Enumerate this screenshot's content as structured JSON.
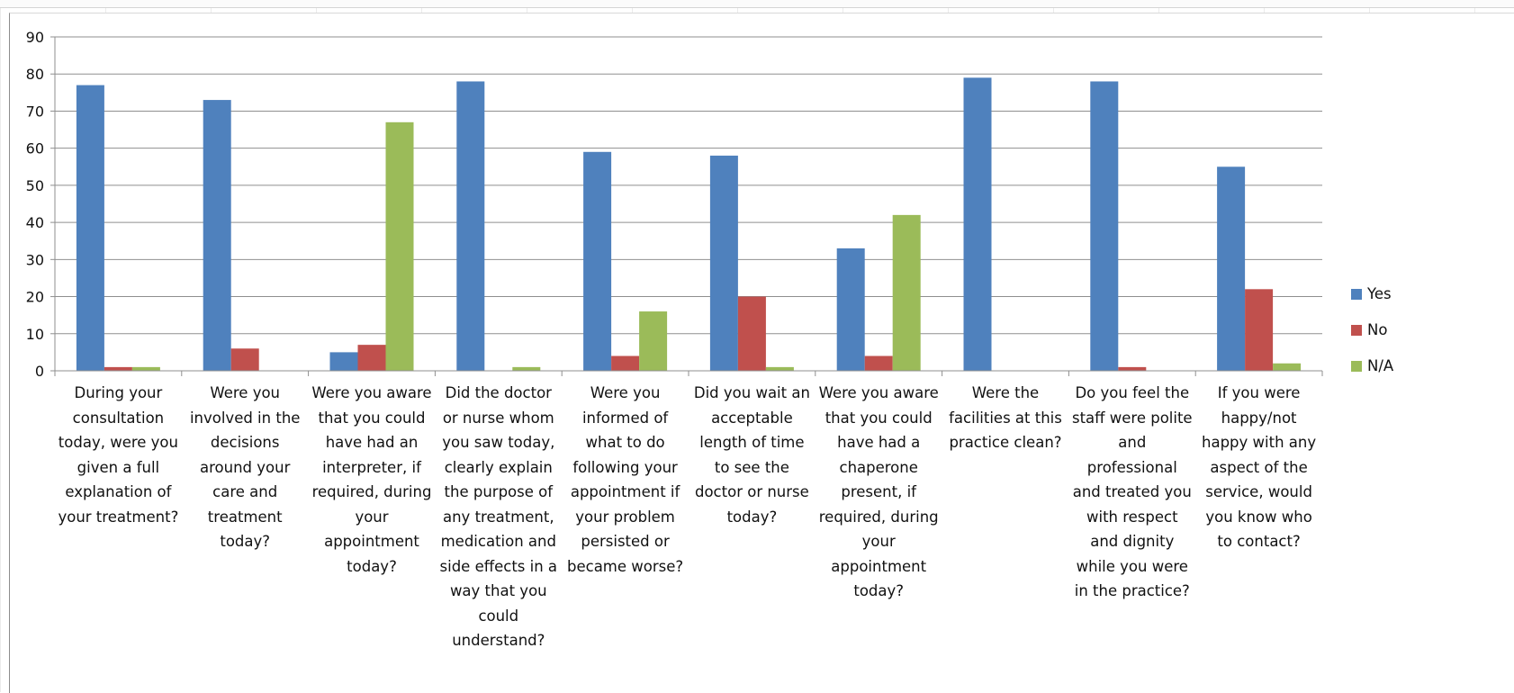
{
  "chart_data": {
    "type": "bar",
    "title": "",
    "xlabel": "",
    "ylabel": "",
    "ylim": [
      0,
      90
    ],
    "yticks": [
      0,
      10,
      20,
      30,
      40,
      50,
      60,
      70,
      80,
      90
    ],
    "grid": true,
    "legend_position": "right",
    "categories": [
      "During your consultation today, were you given a full explanation of your treatment?",
      "Were you involved in the decisions around your care and treatment today?",
      "Were you aware that you could have had an interpreter, if required, during your appointment today?",
      "Did the doctor or nurse whom you saw today, clearly explain the purpose of any treatment, medication and side effects in a way that you could understand?",
      "Were you informed of what to do following your appointment if your problem persisted or became worse?",
      "Did you wait an acceptable length of time to see the doctor or nurse today?",
      "Were you aware that you could have had a chaperone present, if required, during your appointment today?",
      "Were the facilities at this practice clean?",
      "Do you feel the staff were polite and professional and treated you with respect and dignity while you were in the practice?",
      "If you were happy/not happy with any aspect of the service, would you know who to contact?"
    ],
    "series": [
      {
        "name": "Yes",
        "color": "#4f81bd",
        "values": [
          77,
          73,
          5,
          78,
          59,
          58,
          33,
          79,
          78,
          55
        ]
      },
      {
        "name": "No",
        "color": "#c0504d",
        "values": [
          1,
          6,
          7,
          0,
          4,
          20,
          4,
          0,
          1,
          22
        ]
      },
      {
        "name": "N/A",
        "color": "#9bbb59",
        "values": [
          1,
          0,
          67,
          1,
          16,
          1,
          42,
          0,
          0,
          2
        ]
      }
    ]
  }
}
